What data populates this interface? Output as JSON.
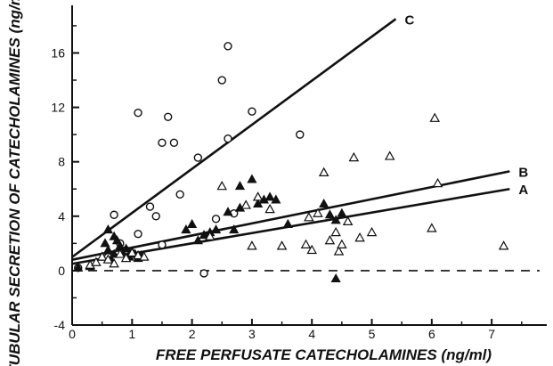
{
  "chart_data": {
    "type": "scatter",
    "title": "",
    "xlabel": "FREE PERFUSATE CATECHOLAMINES (ng/ml)",
    "ylabel": "TUBULAR SECRETION OF CATECHOLAMINES (ng/min)",
    "xlim": [
      0,
      7.8
    ],
    "ylim": [
      -4,
      19.5
    ],
    "x_ticks": [
      0,
      1,
      2,
      3,
      4,
      5,
      6,
      7
    ],
    "y_ticks": [
      -4,
      0,
      4,
      8,
      12,
      16
    ],
    "grid": false,
    "legend": "none",
    "reference_line": {
      "y": 0,
      "style": "dashed"
    },
    "lines": [
      {
        "label": "C",
        "x": [
          0,
          5.4
        ],
        "y": [
          1.0,
          18.5
        ]
      },
      {
        "label": "B",
        "x": [
          0,
          7.3
        ],
        "y": [
          0.8,
          7.3
        ]
      },
      {
        "label": "A",
        "x": [
          0,
          7.3
        ],
        "y": [
          0.5,
          6.0
        ]
      }
    ],
    "series": [
      {
        "marker": "open-circle",
        "x": [
          0.1,
          0.6,
          0.7,
          0.8,
          0.9,
          1.1,
          1.1,
          1.3,
          1.4,
          1.5,
          1.5,
          1.6,
          1.7,
          1.8,
          2.1,
          2.2,
          2.4,
          2.5,
          2.6,
          2.6,
          2.7,
          3.0,
          3.8
        ],
        "y": [
          0.2,
          1.0,
          4.1,
          2.0,
          1.5,
          2.7,
          11.6,
          4.7,
          4.0,
          9.4,
          1.9,
          11.3,
          9.4,
          5.6,
          8.3,
          -0.2,
          3.8,
          14.0,
          16.5,
          9.7,
          4.2,
          11.7,
          10.0
        ]
      },
      {
        "marker": "filled-triangle",
        "x": [
          0.5,
          0.55,
          0.6,
          0.6,
          0.65,
          0.7,
          0.7,
          0.75,
          0.8,
          0.85,
          0.9,
          0.95,
          1.0,
          1.05,
          1.1,
          1.15,
          1.9,
          2.0,
          2.1,
          2.2,
          2.3,
          2.4,
          2.6,
          2.7,
          2.8,
          2.8,
          3.0,
          3.1,
          3.2,
          3.3,
          3.4,
          3.6,
          4.2,
          4.3,
          4.4,
          4.4,
          4.5,
          0.1,
          0.3
        ],
        "y": [
          1.0,
          2.0,
          3.0,
          1.5,
          0.8,
          2.5,
          1.2,
          2.2,
          1.8,
          1.2,
          1.6,
          1.0,
          1.4,
          1.2,
          0.9,
          1.1,
          3.0,
          3.4,
          2.2,
          2.6,
          2.8,
          3.0,
          4.3,
          3.0,
          6.2,
          4.6,
          6.7,
          4.9,
          5.2,
          5.4,
          5.2,
          3.4,
          4.9,
          4.1,
          3.7,
          -0.6,
          4.2,
          0.2,
          0.3
        ]
      },
      {
        "marker": "open-triangle",
        "x": [
          0.3,
          0.4,
          0.5,
          0.6,
          0.7,
          0.8,
          0.9,
          1.0,
          1.1,
          1.2,
          2.3,
          2.5,
          2.9,
          3.0,
          3.1,
          3.3,
          3.5,
          3.9,
          3.95,
          4.0,
          4.1,
          4.2,
          4.3,
          4.4,
          4.45,
          4.5,
          4.6,
          4.7,
          4.8,
          5.0,
          5.3,
          6.0,
          6.05,
          6.1,
          7.2
        ],
        "y": [
          0.4,
          0.6,
          1.0,
          0.8,
          0.5,
          1.2,
          0.9,
          1.3,
          1.1,
          1.0,
          2.5,
          6.2,
          4.8,
          1.8,
          5.4,
          4.5,
          1.8,
          1.9,
          3.9,
          1.5,
          4.2,
          7.2,
          2.2,
          2.8,
          1.4,
          1.9,
          3.6,
          8.3,
          2.4,
          2.8,
          8.4,
          3.1,
          11.2,
          6.4,
          1.8
        ]
      }
    ]
  }
}
